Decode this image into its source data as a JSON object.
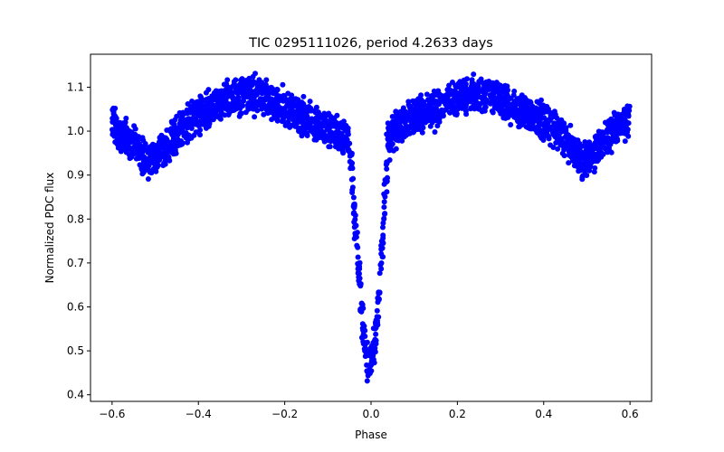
{
  "chart_data": {
    "type": "scatter",
    "title": "TIC 0295111026, period 4.2633 days",
    "xlabel": "Phase",
    "ylabel": "Normalized PDC flux",
    "xlim": [
      -0.65,
      0.65
    ],
    "ylim": [
      0.385,
      1.175
    ],
    "xticks": [
      -0.6,
      -0.4,
      -0.2,
      0.0,
      0.2,
      0.4,
      0.6
    ],
    "xtick_labels": [
      "−0.6",
      "−0.4",
      "−0.2",
      "0.0",
      "0.2",
      "0.4",
      "0.6"
    ],
    "yticks": [
      0.4,
      0.5,
      0.6,
      0.7,
      0.8,
      0.9,
      1.0,
      1.1
    ],
    "ytick_labels": [
      "0.4",
      "0.5",
      "0.6",
      "0.7",
      "0.8",
      "0.9",
      "1.0",
      "1.1"
    ],
    "grid": false,
    "marker_color": "#0000ff",
    "light_curve_profile": {
      "x": [
        -0.6,
        -0.58,
        -0.55,
        -0.52,
        -0.5,
        -0.48,
        -0.45,
        -0.42,
        -0.38,
        -0.34,
        -0.3,
        -0.26,
        -0.22,
        -0.18,
        -0.14,
        -0.1,
        -0.07,
        -0.05,
        -0.04,
        -0.03,
        -0.02,
        -0.01,
        0.0,
        0.01,
        0.02,
        0.03,
        0.04,
        0.05,
        0.08,
        0.12,
        0.16,
        0.2,
        0.24,
        0.28,
        0.32,
        0.36,
        0.4,
        0.44,
        0.47,
        0.49,
        0.51,
        0.53,
        0.56,
        0.58,
        0.6
      ],
      "y": [
        1.02,
        1.0,
        0.97,
        0.93,
        0.935,
        0.96,
        0.99,
        1.02,
        1.05,
        1.07,
        1.08,
        1.08,
        1.065,
        1.04,
        1.02,
        1.005,
        0.995,
        0.97,
        0.85,
        0.7,
        0.56,
        0.48,
        0.47,
        0.52,
        0.65,
        0.82,
        0.97,
        0.995,
        1.02,
        1.04,
        1.06,
        1.075,
        1.085,
        1.08,
        1.06,
        1.04,
        1.02,
        0.99,
        0.955,
        0.93,
        0.94,
        0.97,
        1.0,
        1.02,
        1.03
      ]
    },
    "data_extremes": {
      "min_flux": 0.4,
      "max_flux": 1.14,
      "phase_range": [
        -0.6,
        0.6
      ]
    }
  }
}
